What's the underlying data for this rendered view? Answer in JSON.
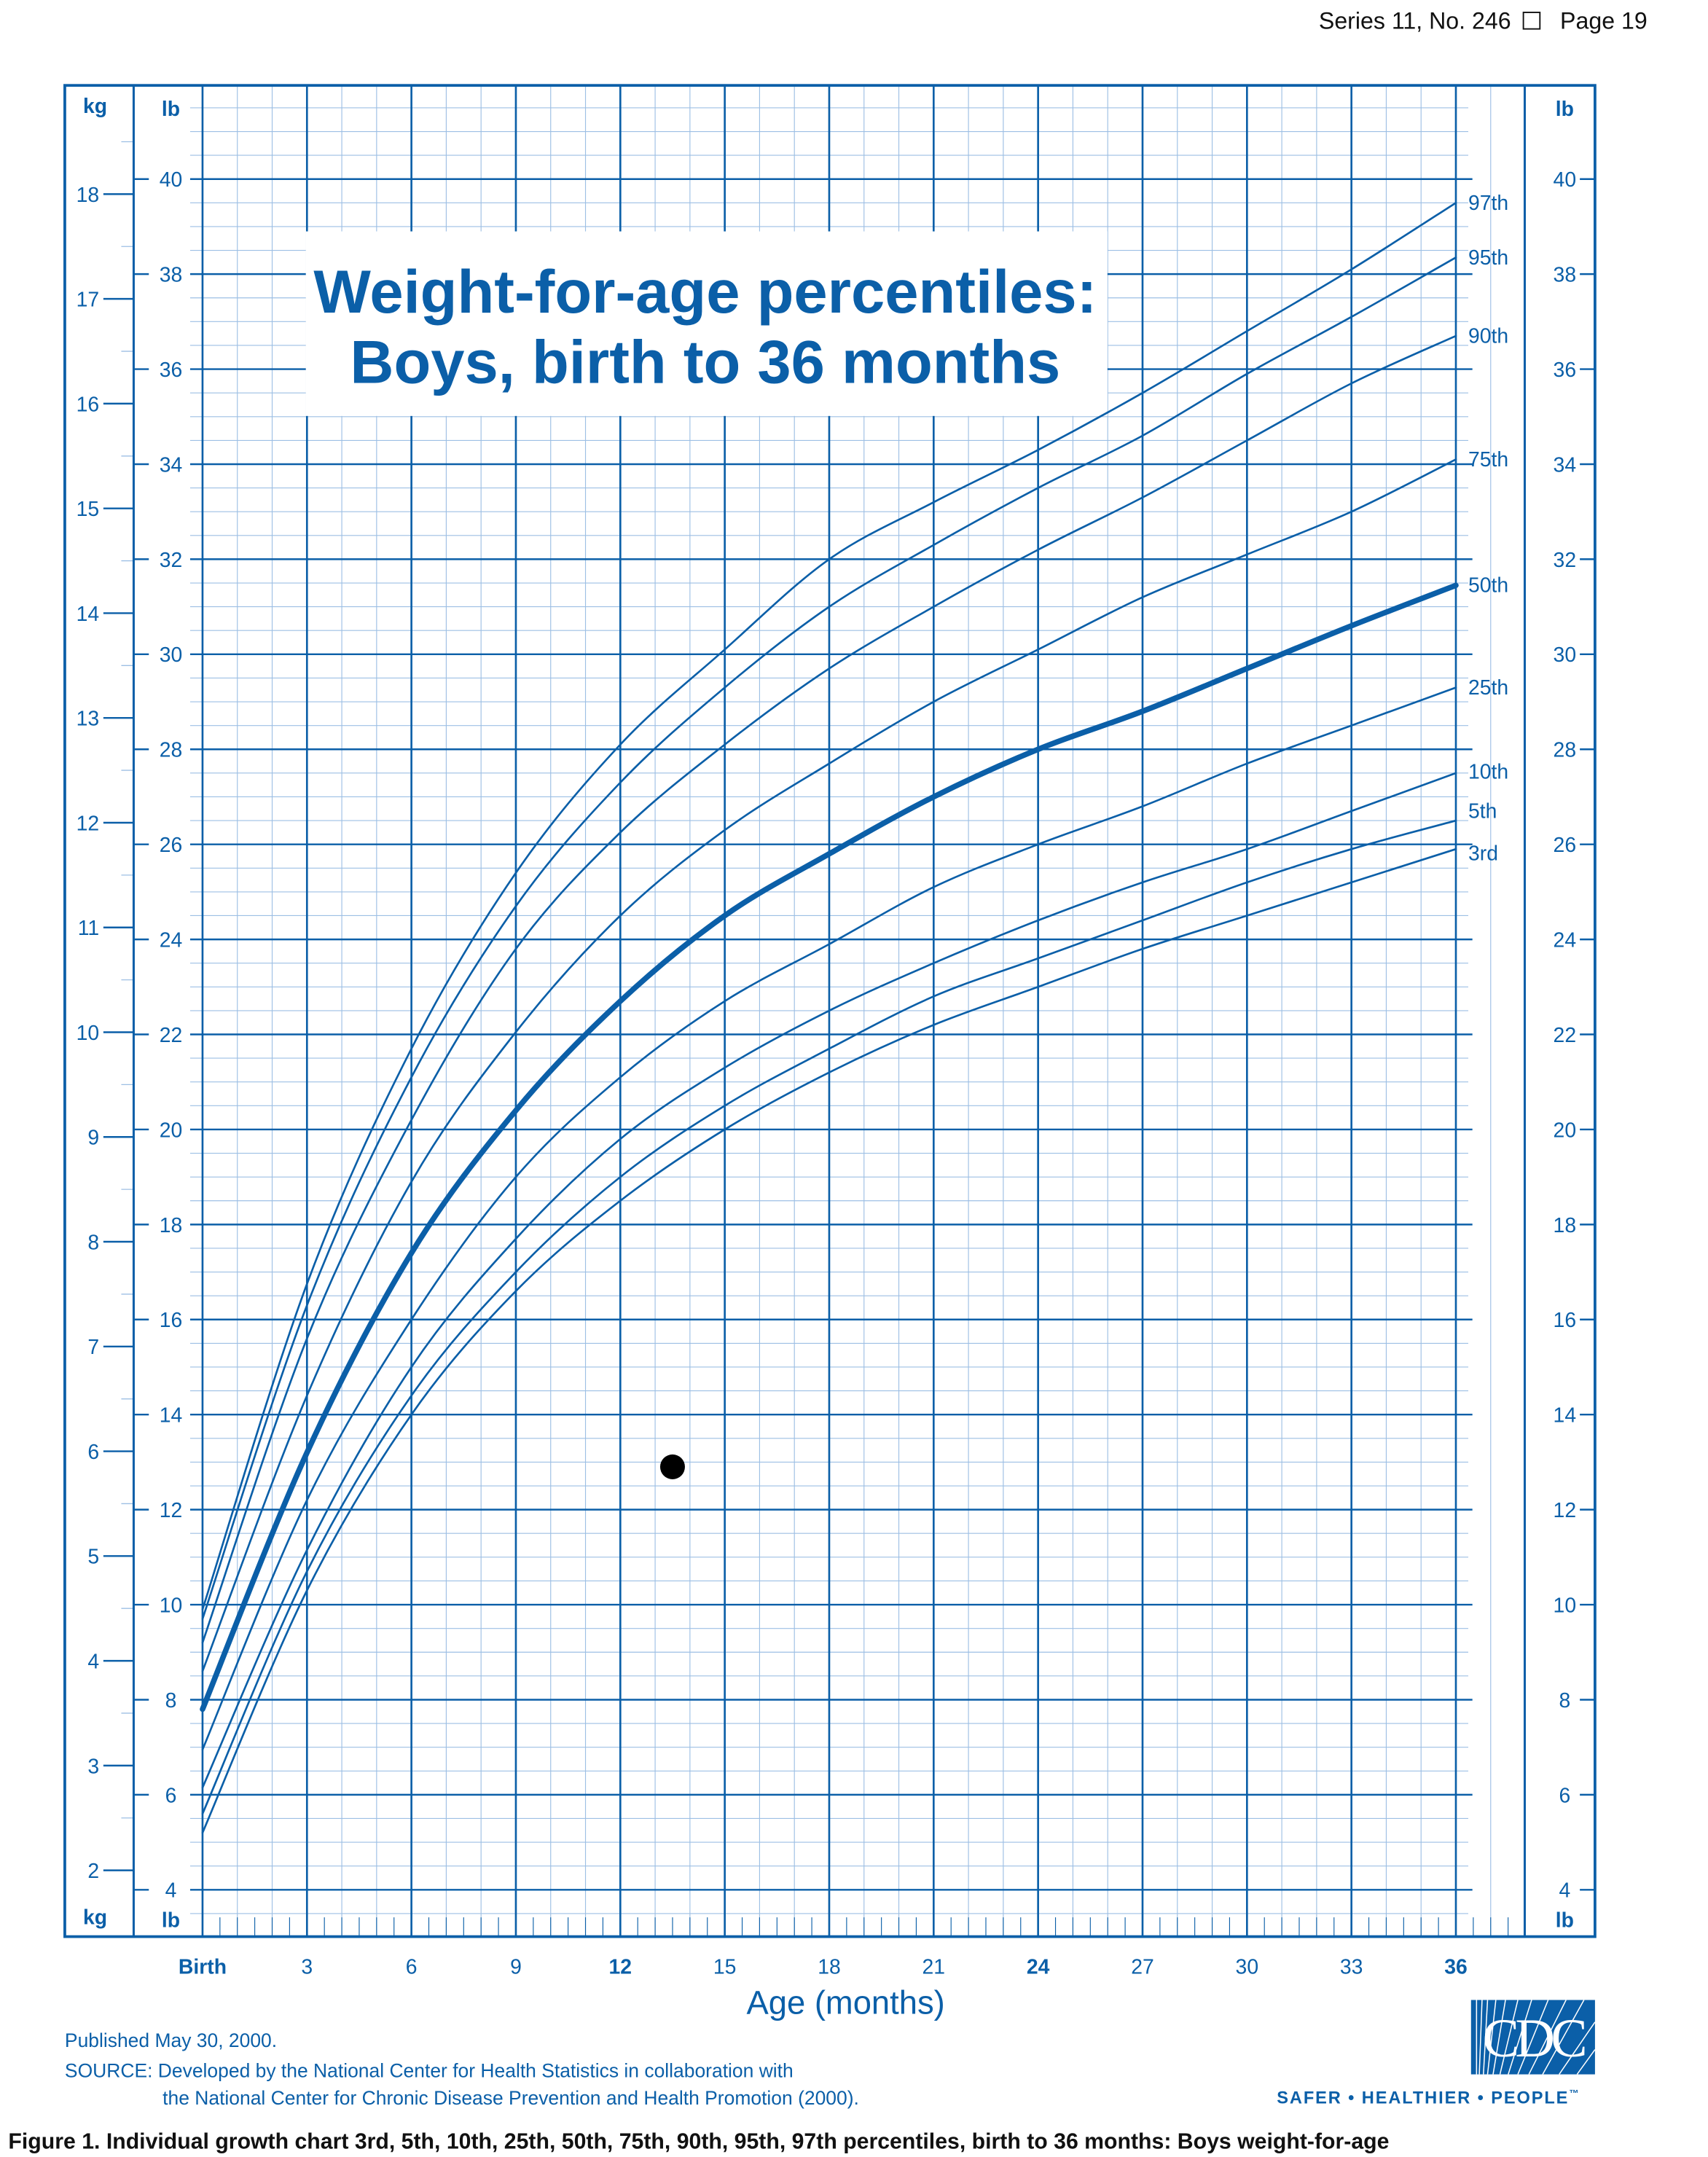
{
  "header": {
    "series": "Series 11, No. 246",
    "page": "Page 19"
  },
  "chart_data": {
    "type": "line",
    "title_line1": "Weight-for-age percentiles:",
    "title_line2": "Boys, birth to 36 months",
    "xlabel": "Age (months)",
    "unit_kg": "kg",
    "unit_lb": "lb",
    "x": [
      0,
      3,
      6,
      9,
      12,
      15,
      18,
      21,
      24,
      27,
      30,
      33,
      36
    ],
    "x_tick_labels": [
      "Birth",
      "3",
      "6",
      "9",
      "12",
      "15",
      "18",
      "21",
      "24",
      "27",
      "30",
      "33",
      "36"
    ],
    "x_tick_bold": [
      "Birth",
      "12",
      "24",
      "36"
    ],
    "xlim": [
      0,
      36
    ],
    "ylim_lb": [
      4,
      40
    ],
    "lb_ticks": [
      4,
      6,
      8,
      10,
      12,
      14,
      16,
      18,
      20,
      22,
      24,
      26,
      28,
      30,
      32,
      34,
      36,
      38,
      40
    ],
    "kg_ticks": [
      2,
      3,
      4,
      5,
      6,
      7,
      8,
      9,
      10,
      11,
      12,
      13,
      14,
      15,
      16,
      17,
      18
    ],
    "grid": true,
    "series": [
      {
        "name": "97th",
        "values": [
          9.9,
          16.75,
          21.7,
          25.4,
          28.1,
          30.1,
          32.0,
          33.2,
          34.3,
          35.5,
          36.8,
          38.1,
          39.5
        ]
      },
      {
        "name": "95th",
        "values": [
          9.7,
          16.3,
          21.1,
          24.7,
          27.3,
          29.3,
          31.0,
          32.3,
          33.5,
          34.6,
          35.9,
          37.1,
          38.35
        ]
      },
      {
        "name": "90th",
        "values": [
          9.2,
          15.6,
          20.2,
          23.8,
          26.25,
          28.1,
          29.7,
          31.0,
          32.2,
          33.3,
          34.5,
          35.7,
          36.7
        ]
      },
      {
        "name": "75th",
        "values": [
          8.6,
          14.4,
          18.9,
          22.05,
          24.5,
          26.3,
          27.7,
          29.0,
          30.1,
          31.2,
          32.1,
          33.0,
          34.1
        ]
      },
      {
        "name": "50th",
        "values": [
          7.8,
          13.2,
          17.4,
          20.4,
          22.7,
          24.5,
          25.8,
          27.0,
          28.0,
          28.8,
          29.7,
          30.6,
          31.45
        ]
      },
      {
        "name": "25th",
        "values": [
          6.95,
          12.2,
          16.0,
          19.0,
          21.1,
          22.7,
          23.9,
          25.1,
          26.0,
          26.8,
          27.7,
          28.5,
          29.3
        ]
      },
      {
        "name": "10th",
        "values": [
          6.15,
          11.15,
          15.0,
          17.7,
          19.8,
          21.3,
          22.5,
          23.5,
          24.4,
          25.2,
          25.9,
          26.7,
          27.5
        ]
      },
      {
        "name": "5th",
        "values": [
          5.6,
          10.7,
          14.4,
          17.0,
          19.0,
          20.5,
          21.7,
          22.8,
          23.6,
          24.4,
          25.2,
          25.9,
          26.5
        ]
      },
      {
        "name": "3rd",
        "values": [
          5.2,
          10.3,
          14.0,
          16.6,
          18.5,
          20.0,
          21.2,
          22.2,
          23.0,
          23.8,
          24.5,
          25.2,
          25.9
        ]
      }
    ],
    "highlight_series": "50th",
    "point": {
      "age_months": 13.5,
      "weight_lb": 12.9
    },
    "line_color": "#0b5fa8",
    "grid_color_light": "#9dbfe4"
  },
  "footer": {
    "published": "Published May 30, 2000.",
    "source_line1": "SOURCE: Developed by the National Center for Health Statistics in collaboration with",
    "source_line2": "the National Center for Chronic Disease Prevention and Health Promotion (2000).",
    "caption": "Figure 1. Individual growth chart 3rd, 5th, 10th, 25th, 50th, 75th, 90th, 95th, 97th percentiles, birth to 36 months: Boys weight-for-age"
  },
  "logo": {
    "text": "CDC",
    "tagline": "SAFER • HEALTHIER • PEOPLE",
    "tm": "™"
  }
}
